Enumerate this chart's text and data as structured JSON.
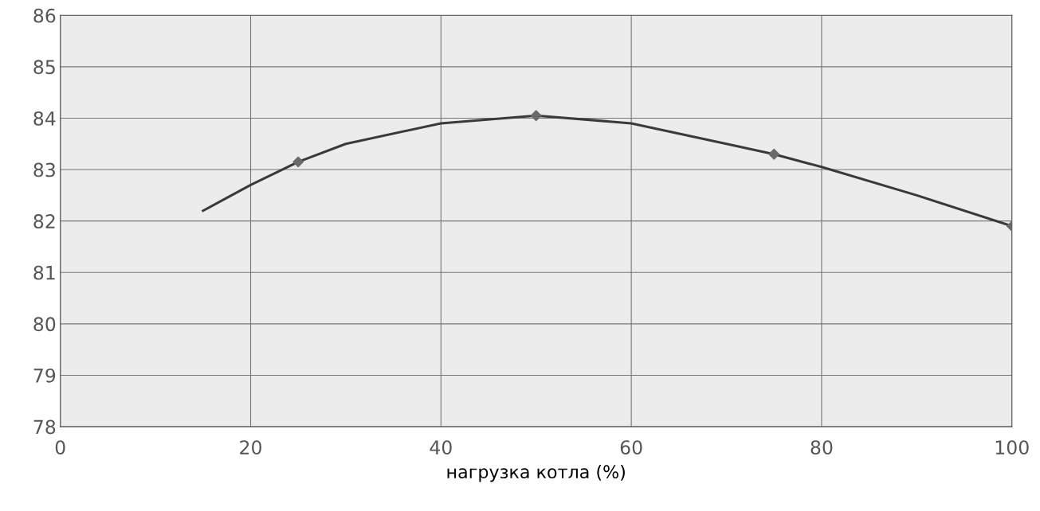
{
  "chart_data": {
    "type": "line",
    "xlabel": "нагрузка котла (%)",
    "series": [
      {
        "color": "#3a3a3a",
        "marker": "none",
        "x": [
          15,
          20,
          25,
          30,
          40,
          50,
          60,
          70,
          75,
          80,
          90,
          100
        ],
        "values": [
          82.2,
          82.7,
          83.15,
          83.5,
          83.9,
          84.05,
          83.9,
          83.5,
          83.3,
          83.05,
          82.5,
          81.9
        ]
      },
      {
        "type": "scatter",
        "color": "#6a6a6a",
        "marker": "diamond",
        "x": [
          25,
          50,
          75,
          100
        ],
        "values": [
          83.15,
          84.05,
          83.3,
          81.9
        ]
      }
    ],
    "xlim": [
      0,
      100
    ],
    "xticks": [
      0,
      20,
      40,
      60,
      80,
      100
    ],
    "ylim": [
      78,
      86
    ],
    "yticks": [
      78,
      79,
      80,
      81,
      82,
      83,
      84,
      85,
      86
    ],
    "grid": true
  }
}
